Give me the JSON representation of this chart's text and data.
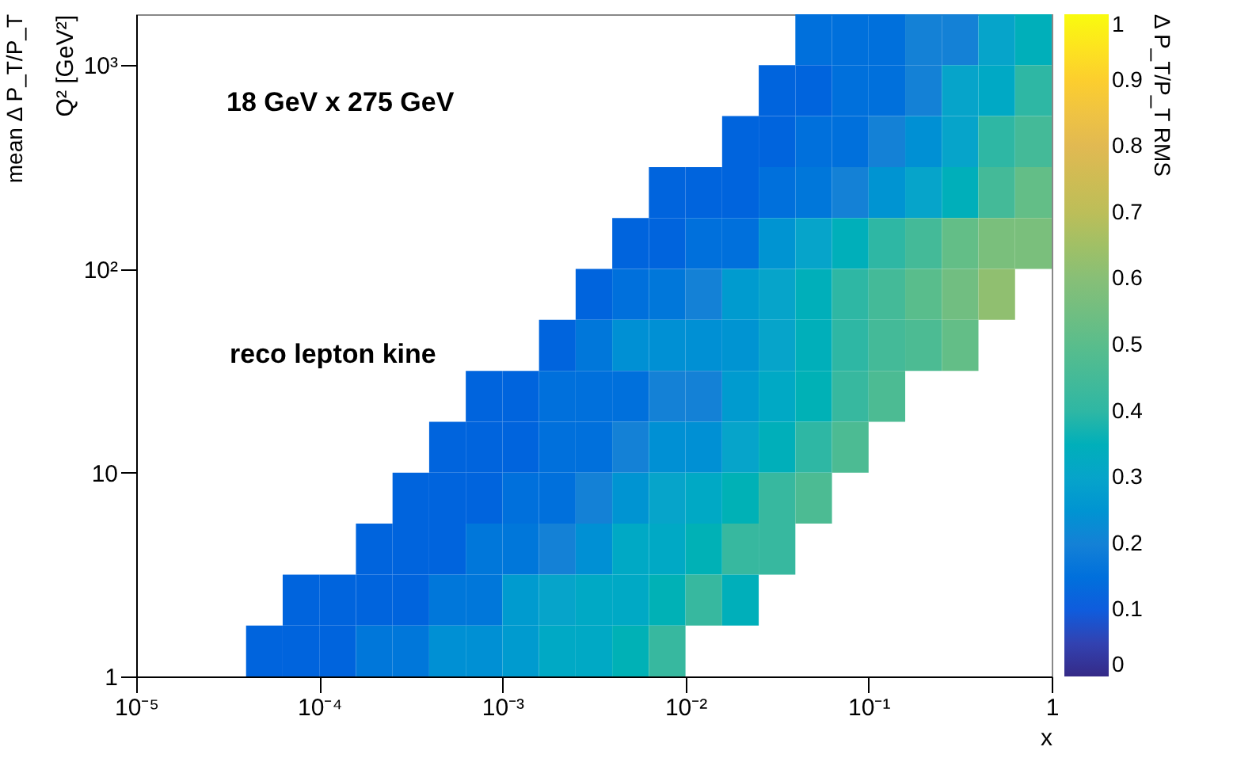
{
  "chart_data": {
    "type": "heatmap",
    "title": "mean Δ P_T/P_T",
    "xlabel": "x",
    "ylabel": "Q² [GeV²]",
    "clabel": "Δ P_T/P_T RMS",
    "annotations": [
      "18 GeV x 275 GeV",
      "reco lepton kine"
    ],
    "log": "xy",
    "xlim": [
      1e-05,
      1
    ],
    "xticks": [
      {
        "value": 1e-05,
        "label": "10⁻⁵"
      },
      {
        "value": 0.0001,
        "label": "10⁻⁴"
      },
      {
        "value": 0.001,
        "label": "10⁻³"
      },
      {
        "value": 0.01,
        "label": "10⁻²"
      },
      {
        "value": 0.1,
        "label": "10⁻¹"
      },
      1
    ],
    "ylim": [
      1,
      1778
    ],
    "yticks": [
      1,
      10,
      {
        "value": 100,
        "label": "10²"
      },
      {
        "value": 1000,
        "label": "10³"
      }
    ],
    "clim": [
      0,
      1
    ],
    "cticks": [
      0,
      0.1,
      0.2,
      0.3,
      0.4,
      0.5,
      0.6,
      0.7,
      0.8,
      0.9,
      1
    ],
    "grid": false,
    "cells": [
      [
        null,
        null,
        null,
        null,
        null,
        null,
        null,
        null,
        null,
        null,
        null,
        null,
        null,
        null,
        null,
        null,
        null,
        null,
        0.15,
        0.15,
        0.15,
        0.2,
        0.2,
        0.3,
        0.35
      ],
      [
        null,
        null,
        null,
        null,
        null,
        null,
        null,
        null,
        null,
        null,
        null,
        null,
        null,
        null,
        null,
        null,
        null,
        0.12,
        0.12,
        0.15,
        0.15,
        0.2,
        0.3,
        0.32,
        0.4
      ],
      [
        null,
        null,
        null,
        null,
        null,
        null,
        null,
        null,
        null,
        null,
        null,
        null,
        null,
        null,
        null,
        null,
        0.12,
        0.12,
        0.15,
        0.15,
        0.2,
        0.24,
        0.3,
        0.4,
        0.45
      ],
      [
        null,
        null,
        null,
        null,
        null,
        null,
        null,
        null,
        null,
        null,
        null,
        null,
        null,
        null,
        0.12,
        0.12,
        0.12,
        0.15,
        0.17,
        0.2,
        0.25,
        0.3,
        0.35,
        0.45,
        0.52
      ],
      [
        null,
        null,
        null,
        null,
        null,
        null,
        null,
        null,
        null,
        null,
        null,
        null,
        null,
        0.12,
        0.12,
        0.15,
        0.15,
        0.25,
        0.3,
        0.35,
        0.4,
        0.45,
        0.52,
        0.57,
        0.57
      ],
      [
        null,
        null,
        null,
        null,
        null,
        null,
        null,
        null,
        null,
        null,
        null,
        null,
        0.12,
        0.15,
        0.17,
        0.2,
        0.27,
        0.3,
        0.35,
        0.4,
        0.45,
        0.5,
        0.55,
        0.62,
        null
      ],
      [
        null,
        null,
        null,
        null,
        null,
        null,
        null,
        null,
        null,
        null,
        null,
        0.12,
        0.17,
        0.24,
        0.24,
        0.24,
        0.25,
        0.3,
        0.35,
        0.4,
        0.45,
        0.47,
        0.52,
        null,
        null
      ],
      [
        null,
        null,
        null,
        null,
        null,
        null,
        null,
        null,
        null,
        0.12,
        0.12,
        0.15,
        0.15,
        0.15,
        0.2,
        0.2,
        0.27,
        0.32,
        0.36,
        0.42,
        0.47,
        null,
        null,
        null,
        null
      ],
      [
        null,
        null,
        null,
        null,
        null,
        null,
        null,
        null,
        0.12,
        0.12,
        0.12,
        0.15,
        0.15,
        0.2,
        0.24,
        0.24,
        0.3,
        0.35,
        0.4,
        0.47,
        null,
        null,
        null,
        null,
        null
      ],
      [
        null,
        null,
        null,
        null,
        null,
        null,
        null,
        0.12,
        0.12,
        0.12,
        0.15,
        0.15,
        0.2,
        0.25,
        0.3,
        0.32,
        0.36,
        0.42,
        0.47,
        null,
        null,
        null,
        null,
        null,
        null
      ],
      [
        null,
        null,
        null,
        null,
        null,
        null,
        0.12,
        0.12,
        0.12,
        0.17,
        0.17,
        0.2,
        0.24,
        0.32,
        0.32,
        0.36,
        0.42,
        0.42,
        null,
        null,
        null,
        null,
        null,
        null,
        null
      ],
      [
        null,
        null,
        null,
        null,
        0.12,
        0.12,
        0.12,
        0.12,
        0.17,
        0.17,
        0.27,
        0.3,
        0.32,
        0.32,
        0.36,
        0.42,
        0.35,
        null,
        null,
        null,
        null,
        null,
        null,
        null,
        null
      ],
      [
        null,
        null,
        null,
        0.12,
        0.12,
        0.12,
        0.17,
        0.17,
        0.24,
        0.24,
        0.27,
        0.32,
        0.32,
        0.36,
        0.42,
        null,
        null,
        null,
        null,
        null,
        null,
        null,
        null,
        null,
        null
      ]
    ]
  }
}
